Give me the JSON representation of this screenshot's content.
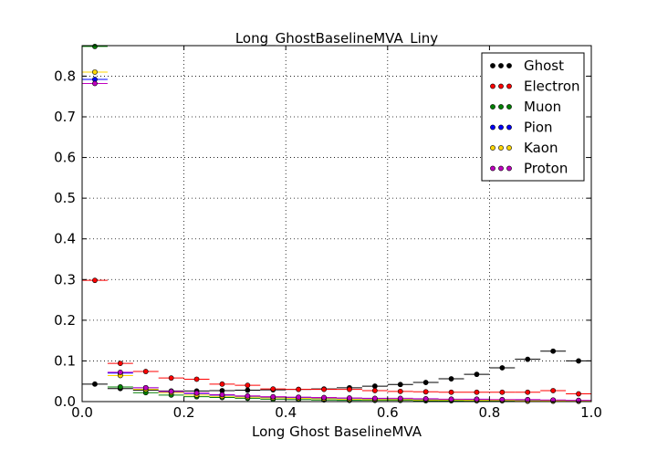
{
  "chart_data": {
    "type": "scatter",
    "title": "Long_GhostBaselineMVA_Liny",
    "xlabel": "Long Ghost BaselineMVA",
    "ylabel": "",
    "xlim": [
      0.0,
      1.0
    ],
    "ylim": [
      0.0,
      0.875
    ],
    "x_ticks": [
      "0.0",
      "0.2",
      "0.4",
      "0.6",
      "0.8",
      "1.0"
    ],
    "y_ticks": [
      "0.0",
      "0.1",
      "0.2",
      "0.3",
      "0.4",
      "0.5",
      "0.6",
      "0.7",
      "0.8"
    ],
    "grid": true,
    "legend_position": "top-right",
    "bin_width": 0.05,
    "x": [
      0.025,
      0.075,
      0.125,
      0.175,
      0.225,
      0.275,
      0.325,
      0.375,
      0.425,
      0.475,
      0.525,
      0.575,
      0.625,
      0.675,
      0.725,
      0.775,
      0.825,
      0.875,
      0.925,
      0.975
    ],
    "series": [
      {
        "name": "Ghost",
        "color": "#000000",
        "values": [
          0.043,
          0.032,
          0.028,
          0.026,
          0.026,
          0.027,
          0.028,
          0.029,
          0.03,
          0.031,
          0.034,
          0.038,
          0.042,
          0.047,
          0.056,
          0.067,
          0.083,
          0.104,
          0.124,
          0.1
        ]
      },
      {
        "name": "Electron",
        "color": "#ff0000",
        "values": [
          0.298,
          0.094,
          0.074,
          0.058,
          0.055,
          0.043,
          0.04,
          0.031,
          0.03,
          0.03,
          0.03,
          0.027,
          0.025,
          0.024,
          0.023,
          0.023,
          0.023,
          0.023,
          0.027,
          0.019
        ]
      },
      {
        "name": "Muon",
        "color": "#008000",
        "values": [
          0.873,
          0.036,
          0.022,
          0.016,
          0.012,
          0.01,
          0.008,
          0.006,
          0.005,
          0.004,
          0.003,
          0.003,
          0.003,
          0.002,
          0.002,
          0.002,
          0.002,
          0.001,
          0.001,
          0.001
        ]
      },
      {
        "name": "Pion",
        "color": "#0000ff",
        "values": [
          0.792,
          0.07,
          0.034,
          0.024,
          0.02,
          0.016,
          0.013,
          0.011,
          0.01,
          0.009,
          0.008,
          0.007,
          0.006,
          0.006,
          0.005,
          0.005,
          0.004,
          0.004,
          0.003,
          0.002
        ]
      },
      {
        "name": "Kaon",
        "color": "#ffd700",
        "values": [
          0.81,
          0.064,
          0.03,
          0.022,
          0.016,
          0.013,
          0.011,
          0.009,
          0.008,
          0.007,
          0.006,
          0.005,
          0.005,
          0.004,
          0.004,
          0.003,
          0.003,
          0.002,
          0.002,
          0.001
        ]
      },
      {
        "name": "Proton",
        "color": "#c000c0",
        "values": [
          0.782,
          0.072,
          0.034,
          0.025,
          0.021,
          0.017,
          0.014,
          0.012,
          0.011,
          0.01,
          0.009,
          0.008,
          0.008,
          0.007,
          0.006,
          0.006,
          0.005,
          0.005,
          0.004,
          0.003
        ]
      }
    ]
  }
}
